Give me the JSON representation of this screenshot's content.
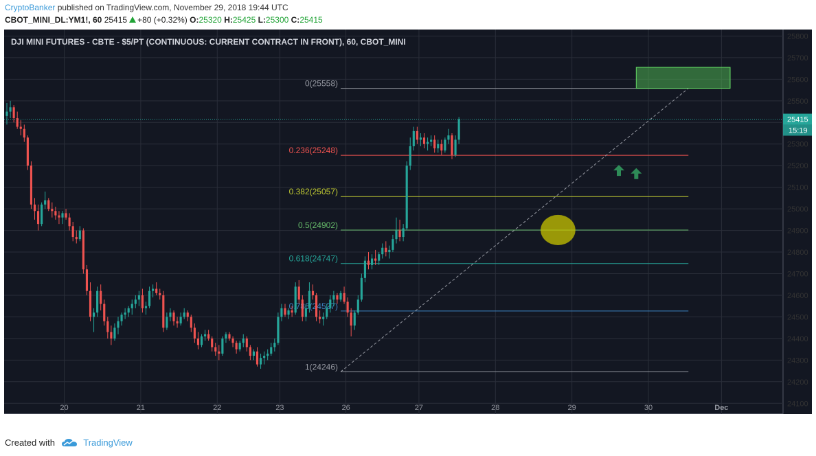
{
  "header": {
    "author": "CryptoBanker",
    "published_text": "published on TradingView.com, November 29, 2018 19:44 UTC",
    "symbol": "CBOT_MINI_DL:YM1!, 60",
    "last": "25415",
    "change": "+80 (+0.32%)",
    "o_label": "O:",
    "o_value": "25320",
    "h_label": "H:",
    "h_value": "25425",
    "l_label": "L:",
    "l_value": "25300",
    "c_label": "C:",
    "c_value": "25415"
  },
  "footer": {
    "created_with": "Created with",
    "brand": "TradingView"
  },
  "colors": {
    "background": "#131722",
    "grid": "#2a2e39",
    "bull": "#26a69a",
    "bear": "#ef5350",
    "target_box": "#4caf50",
    "highlight": "#c8c400",
    "arrow": "#2e8b57"
  },
  "chart_data": {
    "type": "candlestick",
    "title": "DJI MINI FUTURES - CBTE - $5/PT (CONTINUOUS: CURRENT CONTRACT IN FRONT), 60, CBOT_MINI",
    "ylim": [
      24050,
      25830
    ],
    "y_ticks": [
      25800,
      25700,
      25600,
      25500,
      25400,
      25300,
      25200,
      25100,
      25000,
      24900,
      24800,
      24700,
      24600,
      24500,
      24400,
      24300,
      24200,
      24100
    ],
    "x_ticks": [
      "20",
      "21",
      "22",
      "23",
      "26",
      "27",
      "28",
      "29",
      "30",
      "Dec"
    ],
    "x_tick_index": [
      16.5,
      38.5,
      60.5,
      78.5,
      97.5,
      118.5,
      140.5,
      162.5,
      184.5,
      205.5
    ],
    "x_count": 224,
    "last_price_label": "25415",
    "countdown_label": "15:19",
    "last_price": 25415,
    "fib_levels": [
      {
        "label": "0(25558)",
        "value": 25558,
        "color": "#9598a1"
      },
      {
        "label": "0.236(25248)",
        "value": 25248,
        "color": "#ef5350"
      },
      {
        "label": "0.382(25057)",
        "value": 25057,
        "color": "#c0ca33"
      },
      {
        "label": "0.5(24902)",
        "value": 24902,
        "color": "#66bb6a"
      },
      {
        "label": "0.618(24747)",
        "value": 24747,
        "color": "#26a69a"
      },
      {
        "label": "0.786(24527)",
        "value": 24527,
        "color": "#3d85c6"
      },
      {
        "label": "1(24246)",
        "value": 24246,
        "color": "#9598a1"
      }
    ],
    "fib_start_index": 96,
    "fib_end_index": 196,
    "trend_line": [
      [
        96,
        24246
      ],
      [
        196,
        25558
      ]
    ],
    "target_box": {
      "x1": 181,
      "x2": 208,
      "y1": 25558,
      "y2": 25655
    },
    "highlight": {
      "x": 158.5,
      "y": 24902,
      "rx": 5,
      "ry": 70
    },
    "arrows": [
      {
        "x": 176,
        "y": 25175
      },
      {
        "x": 181,
        "y": 25160
      }
    ],
    "candles": [
      [
        25430,
        25490,
        25390,
        25450
      ],
      [
        25450,
        25500,
        25420,
        25470
      ],
      [
        25470,
        25480,
        25400,
        25420
      ],
      [
        25420,
        25450,
        25370,
        25380
      ],
      [
        25380,
        25410,
        25340,
        25370
      ],
      [
        25370,
        25390,
        25310,
        25330
      ],
      [
        25330,
        25340,
        25180,
        25200
      ],
      [
        25200,
        25220,
        25000,
        25020
      ],
      [
        25020,
        25050,
        24950,
        24990
      ],
      [
        24990,
        25020,
        24900,
        24930
      ],
      [
        24930,
        25030,
        24920,
        25020
      ],
      [
        25020,
        25080,
        25000,
        25040
      ],
      [
        25040,
        25050,
        24990,
        25000
      ],
      [
        25000,
        25030,
        24960,
        24990
      ],
      [
        24990,
        25010,
        24950,
        24970
      ],
      [
        24970,
        24990,
        24930,
        24960
      ],
      [
        24960,
        24990,
        24930,
        24980
      ],
      [
        24980,
        25000,
        24950,
        24960
      ],
      [
        24960,
        24980,
        24900,
        24920
      ],
      [
        24920,
        24940,
        24850,
        24870
      ],
      [
        24870,
        24900,
        24840,
        24860
      ],
      [
        24860,
        24920,
        24850,
        24900
      ],
      [
        24900,
        24910,
        24700,
        24720
      ],
      [
        24720,
        24740,
        24600,
        24620
      ],
      [
        24620,
        24660,
        24480,
        24500
      ],
      [
        24500,
        24540,
        24430,
        24520
      ],
      [
        24520,
        24640,
        24500,
        24620
      ],
      [
        24620,
        24650,
        24530,
        24560
      ],
      [
        24560,
        24580,
        24460,
        24480
      ],
      [
        24480,
        24500,
        24400,
        24430
      ],
      [
        24430,
        24460,
        24370,
        24400
      ],
      [
        24400,
        24470,
        24390,
        24450
      ],
      [
        24450,
        24500,
        24420,
        24480
      ],
      [
        24480,
        24520,
        24460,
        24510
      ],
      [
        24510,
        24540,
        24490,
        24520
      ],
      [
        24520,
        24550,
        24500,
        24540
      ],
      [
        24540,
        24580,
        24510,
        24560
      ],
      [
        24560,
        24600,
        24540,
        24580
      ],
      [
        24580,
        24620,
        24550,
        24600
      ],
      [
        24600,
        24630,
        24520,
        24540
      ],
      [
        24540,
        24570,
        24510,
        24550
      ],
      [
        24550,
        24640,
        24540,
        24620
      ],
      [
        24620,
        24650,
        24590,
        24630
      ],
      [
        24630,
        24660,
        24600,
        24610
      ],
      [
        24610,
        24630,
        24580,
        24600
      ],
      [
        24600,
        24620,
        24430,
        24450
      ],
      [
        24450,
        24520,
        24440,
        24500
      ],
      [
        24500,
        24540,
        24480,
        24520
      ],
      [
        24520,
        24530,
        24460,
        24480
      ],
      [
        24480,
        24500,
        24450,
        24470
      ],
      [
        24470,
        24520,
        24460,
        24500
      ],
      [
        24500,
        24540,
        24490,
        24520
      ],
      [
        24520,
        24530,
        24480,
        24500
      ],
      [
        24500,
        24510,
        24430,
        24450
      ],
      [
        24450,
        24470,
        24380,
        24400
      ],
      [
        24400,
        24430,
        24350,
        24370
      ],
      [
        24370,
        24420,
        24360,
        24410
      ],
      [
        24410,
        24440,
        24390,
        24420
      ],
      [
        24420,
        24440,
        24390,
        24400
      ],
      [
        24400,
        24410,
        24340,
        24360
      ],
      [
        24360,
        24380,
        24320,
        24340
      ],
      [
        24340,
        24370,
        24300,
        24330
      ],
      [
        24330,
        24410,
        24320,
        24400
      ],
      [
        24400,
        24430,
        24380,
        24420
      ],
      [
        24420,
        24430,
        24390,
        24400
      ],
      [
        24400,
        24410,
        24360,
        24380
      ],
      [
        24380,
        24390,
        24330,
        24350
      ],
      [
        24350,
        24390,
        24340,
        24380
      ],
      [
        24380,
        24420,
        24360,
        24400
      ],
      [
        24400,
        24410,
        24340,
        24360
      ],
      [
        24360,
        24370,
        24300,
        24320
      ],
      [
        24320,
        24350,
        24300,
        24340
      ],
      [
        24340,
        24360,
        24270,
        24280
      ],
      [
        24280,
        24330,
        24260,
        24310
      ],
      [
        24310,
        24340,
        24280,
        24320
      ],
      [
        24320,
        24350,
        24300,
        24330
      ],
      [
        24330,
        24380,
        24320,
        24360
      ],
      [
        24360,
        24400,
        24340,
        24380
      ],
      [
        24380,
        24520,
        24370,
        24500
      ],
      [
        24500,
        24560,
        24480,
        24540
      ],
      [
        24540,
        24560,
        24500,
        24510
      ],
      [
        24510,
        24540,
        24490,
        24530
      ],
      [
        24530,
        24550,
        24500,
        24520
      ],
      [
        24520,
        24660,
        24510,
        24640
      ],
      [
        24640,
        24670,
        24560,
        24580
      ],
      [
        24580,
        24600,
        24480,
        24500
      ],
      [
        24500,
        24560,
        24480,
        24540
      ],
      [
        24540,
        24660,
        24520,
        24620
      ],
      [
        24620,
        24650,
        24580,
        24600
      ],
      [
        24600,
        24610,
        24480,
        24500
      ],
      [
        24500,
        24530,
        24470,
        24490
      ],
      [
        24490,
        24520,
        24460,
        24500
      ],
      [
        24500,
        24560,
        24490,
        24540
      ],
      [
        24540,
        24600,
        24520,
        24580
      ],
      [
        24580,
        24620,
        24550,
        24600
      ],
      [
        24600,
        24610,
        24560,
        24580
      ],
      [
        24580,
        24620,
        24570,
        24610
      ],
      [
        24610,
        24640,
        24560,
        24570
      ],
      [
        24570,
        24590,
        24500,
        24520
      ],
      [
        24520,
        24540,
        24410,
        24460
      ],
      [
        24460,
        24530,
        24440,
        24520
      ],
      [
        24520,
        24600,
        24510,
        24580
      ],
      [
        24580,
        24700,
        24570,
        24680
      ],
      [
        24680,
        24780,
        24660,
        24760
      ],
      [
        24760,
        24800,
        24720,
        24740
      ],
      [
        24740,
        24790,
        24720,
        24770
      ],
      [
        24770,
        24810,
        24740,
        24760
      ],
      [
        24760,
        24800,
        24740,
        24790
      ],
      [
        24790,
        24840,
        24770,
        24820
      ],
      [
        24820,
        24850,
        24780,
        24800
      ],
      [
        24800,
        24830,
        24770,
        24810
      ],
      [
        24810,
        24880,
        24800,
        24860
      ],
      [
        24860,
        24960,
        24840,
        24900
      ],
      [
        24900,
        24950,
        24850,
        24870
      ],
      [
        24870,
        24930,
        24850,
        24910
      ],
      [
        24910,
        25220,
        24900,
        25200
      ],
      [
        25200,
        25330,
        25180,
        25290
      ],
      [
        25290,
        25380,
        25270,
        25360
      ],
      [
        25360,
        25380,
        25300,
        25320
      ],
      [
        25320,
        25350,
        25290,
        25330
      ],
      [
        25330,
        25350,
        25280,
        25300
      ],
      [
        25300,
        25330,
        25270,
        25310
      ],
      [
        25310,
        25340,
        25290,
        25320
      ],
      [
        25320,
        25340,
        25260,
        25280
      ],
      [
        25280,
        25320,
        25260,
        25300
      ],
      [
        25300,
        25320,
        25250,
        25270
      ],
      [
        25270,
        25330,
        25260,
        25320
      ],
      [
        25320,
        25370,
        25300,
        25340
      ],
      [
        25340,
        25350,
        25230,
        25250
      ],
      [
        25250,
        25340,
        25240,
        25320
      ],
      [
        25320,
        25425,
        25300,
        25415
      ]
    ]
  }
}
